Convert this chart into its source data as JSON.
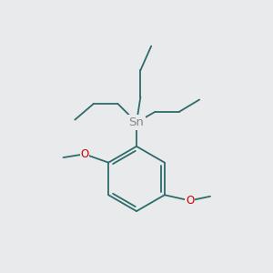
{
  "background_color": "#e8eaeb",
  "bond_color": "#2d6b6b",
  "sn_color": "#888888",
  "o_color": "#cc0000",
  "sn_label": "Sn",
  "o_label": "O",
  "figsize": [
    3.0,
    3.0
  ],
  "dpi": 100,
  "xlim": [
    0.02,
    0.98
  ],
  "ylim": [
    0.05,
    0.98
  ]
}
